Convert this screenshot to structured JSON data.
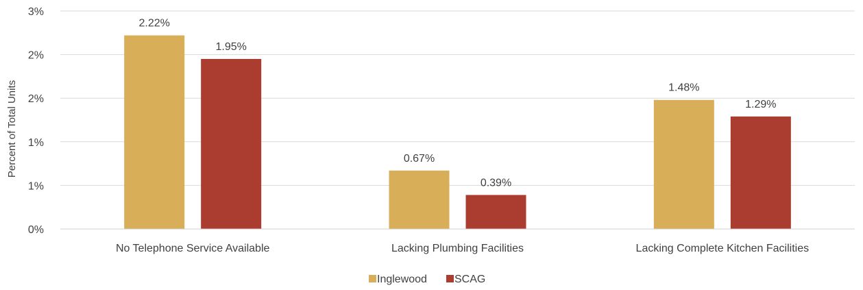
{
  "chart_data": {
    "type": "bar",
    "categories": [
      "No Telephone Service Available",
      "Lacking Plumbing Facilities",
      "Lacking Complete Kitchen Facilities"
    ],
    "series": [
      {
        "name": "Inglewood",
        "color": "#D9AE58",
        "values": [
          2.22,
          0.67,
          1.48
        ],
        "labels": [
          "2.22%",
          "0.67%",
          "1.48%"
        ]
      },
      {
        "name": "SCAG",
        "color": "#AB3C30",
        "values": [
          1.95,
          0.39,
          1.29
        ],
        "labels": [
          "1.95%",
          "0.39%",
          "1.29%"
        ]
      }
    ],
    "ylabel": "Percent of Total Units",
    "ylim": [
      0,
      2.5
    ],
    "yticks": [
      0,
      0.5,
      1.0,
      1.5,
      2.0,
      2.5
    ],
    "ytick_labels": [
      "0%",
      "1%",
      "1%",
      "2%",
      "2%",
      "3%"
    ],
    "grid": true,
    "legend_position": "bottom"
  }
}
